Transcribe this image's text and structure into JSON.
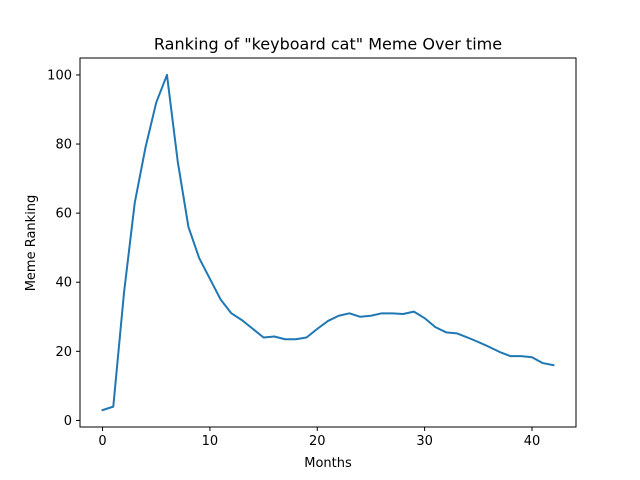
{
  "chart_data": {
    "type": "line",
    "title": "Ranking of \"keyboard cat\" Meme Over time",
    "xlabel": "Months",
    "ylabel": "Meme Ranking",
    "xlim": [
      -2.1,
      44.1
    ],
    "ylim": [
      -1.9,
      104.9
    ],
    "xticks": [
      0,
      10,
      20,
      30,
      40
    ],
    "yticks": [
      0,
      20,
      40,
      60,
      80,
      100
    ],
    "grid": false,
    "colors": {
      "line": "#1f77b4",
      "axes": "#000000",
      "background": "#ffffff"
    },
    "series": [
      {
        "x": [
          0,
          1,
          2,
          3,
          4,
          5,
          6,
          7,
          8,
          9,
          10,
          11,
          12,
          13,
          14,
          15,
          16,
          17,
          18,
          19,
          20,
          21,
          22,
          23,
          24,
          25,
          26,
          27,
          28,
          29,
          30,
          31,
          32,
          33,
          34,
          35,
          36,
          37,
          38,
          39,
          40,
          41,
          42
        ],
        "values": [
          3,
          4,
          37,
          63,
          79,
          92,
          100,
          75,
          56,
          47,
          41,
          35,
          31,
          29,
          26.5,
          24,
          24.3,
          23.5,
          23.5,
          24,
          26.5,
          28.8,
          30.3,
          31,
          30,
          30.3,
          31,
          31,
          30.8,
          31.5,
          29.6,
          27,
          25.5,
          25.2,
          24,
          22.7,
          21.3,
          19.8,
          18.6,
          18.6,
          18.3,
          16.6,
          16
        ]
      }
    ]
  }
}
